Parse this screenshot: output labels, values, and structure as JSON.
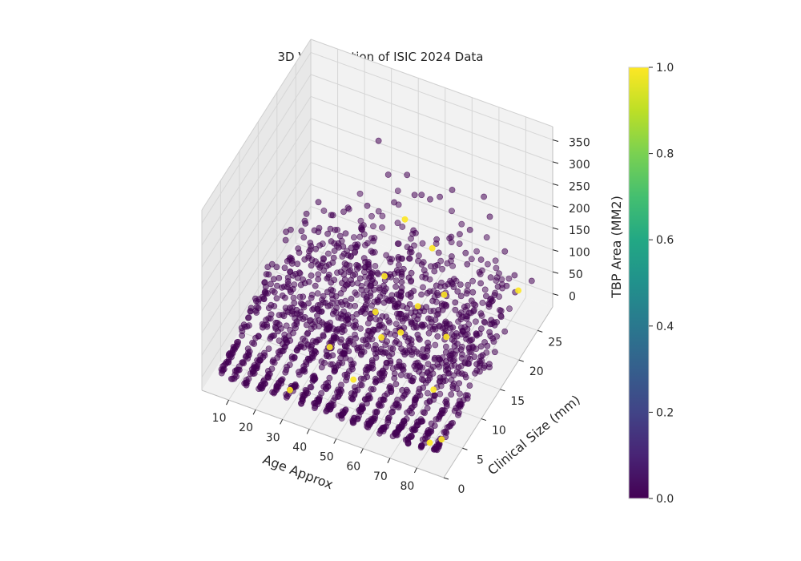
{
  "chart_data": {
    "type": "scatter",
    "title": "3D Visualization of ISIC 2024 Data",
    "xlabel": "Age Approx",
    "ylabel": "Clinical Size (mm)",
    "zlabel": "TBP Area (MM2)",
    "xlim": [
      0,
      90
    ],
    "ylim": [
      0,
      29
    ],
    "zlim": [
      -30,
      380
    ],
    "x_ticks": [
      10,
      20,
      30,
      40,
      50,
      60,
      70,
      80
    ],
    "y_ticks": [
      0,
      5,
      10,
      15,
      20,
      25
    ],
    "z_ticks": [
      0,
      50,
      100,
      150,
      200,
      250,
      300,
      350
    ],
    "grid": true,
    "colormap": "viridis",
    "colorbar": {
      "min": 0.0,
      "max": 1.0,
      "ticks": [
        "0.0",
        "0.2",
        "0.4",
        "0.6",
        "0.8",
        "1.0"
      ]
    },
    "age_groups": [
      5,
      10,
      15,
      20,
      25,
      30,
      35,
      40,
      45,
      50,
      55,
      60,
      65,
      70,
      75,
      80,
      85
    ],
    "points_target0": [
      [
        35,
        22,
        320
      ],
      [
        40,
        26,
        200
      ],
      [
        55,
        24,
        210
      ],
      [
        65,
        20,
        150
      ],
      [
        70,
        25,
        230
      ],
      [
        50,
        25,
        180
      ],
      [
        45,
        18,
        120
      ],
      [
        60,
        23,
        140
      ],
      [
        30,
        20,
        100
      ],
      [
        75,
        27,
        90
      ],
      [
        80,
        26,
        60
      ],
      [
        25,
        10,
        40
      ],
      [
        20,
        15,
        110
      ],
      [
        52,
        16,
        135
      ],
      [
        58,
        21,
        160
      ],
      [
        62,
        27,
        110
      ],
      [
        48,
        22,
        145
      ],
      [
        38,
        24,
        160
      ],
      [
        44,
        27,
        150
      ],
      [
        67,
        14,
        75
      ],
      [
        72,
        19,
        95
      ],
      [
        28,
        24,
        130
      ],
      [
        33,
        26,
        185
      ],
      [
        54,
        28,
        170
      ],
      [
        46,
        12,
        85
      ],
      [
        64,
        17,
        100
      ],
      [
        36,
        14,
        70
      ],
      [
        42,
        9,
        55
      ],
      [
        57,
        11,
        60
      ],
      [
        73,
        22,
        80
      ],
      [
        78,
        23,
        70
      ],
      [
        68,
        28,
        140
      ],
      [
        47,
        23,
        210
      ],
      [
        53,
        19,
        190
      ],
      [
        39,
        17,
        95
      ],
      [
        61,
        25,
        125
      ],
      [
        66,
        23,
        120
      ],
      [
        31,
        17,
        80
      ],
      [
        26,
        19,
        100
      ],
      [
        22,
        22,
        130
      ],
      [
        83,
        24,
        55
      ],
      [
        85,
        27,
        45
      ],
      [
        5,
        3,
        5
      ]
    ],
    "points_target1": [
      [
        60,
        10,
        100
      ],
      [
        40,
        20,
        50
      ],
      [
        50,
        12,
        40
      ],
      [
        75,
        8,
        30
      ],
      [
        55,
        22,
        120
      ],
      [
        45,
        14,
        60
      ],
      [
        30,
        2,
        10
      ],
      [
        85,
        3,
        6
      ],
      [
        82,
        2,
        5
      ],
      [
        70,
        15,
        45
      ],
      [
        65,
        18,
        90
      ],
      [
        35,
        9,
        25
      ],
      [
        80,
        27,
        12
      ],
      [
        42,
        24,
        130
      ],
      [
        58,
        16,
        75
      ],
      [
        48,
        6,
        20
      ]
    ]
  }
}
